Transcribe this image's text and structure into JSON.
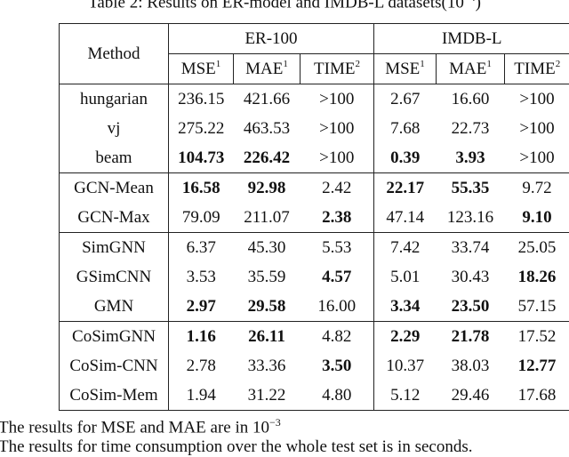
{
  "caption": {
    "text": "Table 2: Results on ER-model and IMDB-L datasets(10",
    "exp": "−4",
    "close": ")"
  },
  "table": {
    "method_header": "Method",
    "groups": [
      "ER-100",
      "IMDB-L"
    ],
    "subheaders": [
      {
        "label": "MSE",
        "sup": "1"
      },
      {
        "label": "MAE",
        "sup": "1"
      },
      {
        "label": "TIME",
        "sup": "2"
      },
      {
        "label": "MSE",
        "sup": "1"
      },
      {
        "label": "MAE",
        "sup": "1"
      },
      {
        "label": "TIME",
        "sup": "2"
      }
    ],
    "rows": [
      {
        "method": "hungarian",
        "values": [
          "236.15",
          "421.66",
          ">100",
          "2.67",
          "16.60",
          ">100"
        ],
        "bold": [
          false,
          false,
          false,
          false,
          false,
          false
        ]
      },
      {
        "method": "vj",
        "values": [
          "275.22",
          "463.53",
          ">100",
          "7.68",
          "22.73",
          ">100"
        ],
        "bold": [
          false,
          false,
          false,
          false,
          false,
          false
        ]
      },
      {
        "method": "beam",
        "values": [
          "104.73",
          "226.42",
          ">100",
          "0.39",
          "3.93",
          ">100"
        ],
        "bold": [
          true,
          true,
          false,
          true,
          true,
          false
        ]
      },
      {
        "method": "GCN-Mean",
        "values": [
          "16.58",
          "92.98",
          "2.42",
          "22.17",
          "55.35",
          "9.72"
        ],
        "bold": [
          true,
          true,
          false,
          true,
          true,
          false
        ]
      },
      {
        "method": "GCN-Max",
        "values": [
          "79.09",
          "211.07",
          "2.38",
          "47.14",
          "123.16",
          "9.10"
        ],
        "bold": [
          false,
          false,
          true,
          false,
          false,
          true
        ]
      },
      {
        "method": "SimGNN",
        "values": [
          "6.37",
          "45.30",
          "5.53",
          "7.42",
          "33.74",
          "25.05"
        ],
        "bold": [
          false,
          false,
          false,
          false,
          false,
          false
        ]
      },
      {
        "method": "GSimCNN",
        "values": [
          "3.53",
          "35.59",
          "4.57",
          "5.01",
          "30.43",
          "18.26"
        ],
        "bold": [
          false,
          false,
          true,
          false,
          false,
          true
        ]
      },
      {
        "method": "GMN",
        "values": [
          "2.97",
          "29.58",
          "16.00",
          "3.34",
          "23.50",
          "57.15"
        ],
        "bold": [
          true,
          true,
          false,
          true,
          true,
          false
        ]
      },
      {
        "method": "CoSimGNN",
        "values": [
          "1.16",
          "26.11",
          "4.82",
          "2.29",
          "21.78",
          "17.52"
        ],
        "bold": [
          true,
          true,
          false,
          true,
          true,
          false
        ]
      },
      {
        "method": "CoSim-CNN",
        "values": [
          "2.78",
          "33.36",
          "3.50",
          "10.37",
          "38.03",
          "12.77"
        ],
        "bold": [
          false,
          false,
          true,
          false,
          false,
          true
        ]
      },
      {
        "method": "CoSim-Mem",
        "values": [
          "1.94",
          "31.22",
          "4.80",
          "5.12",
          "29.46",
          "17.68"
        ],
        "bold": [
          false,
          false,
          false,
          false,
          false,
          false
        ]
      }
    ]
  },
  "footnotes": [
    {
      "text": "The results for MSE and MAE are in 10",
      "exp": "−3"
    },
    {
      "text": "The results for time consumption over the whole test set is in seconds.",
      "exp": ""
    }
  ]
}
